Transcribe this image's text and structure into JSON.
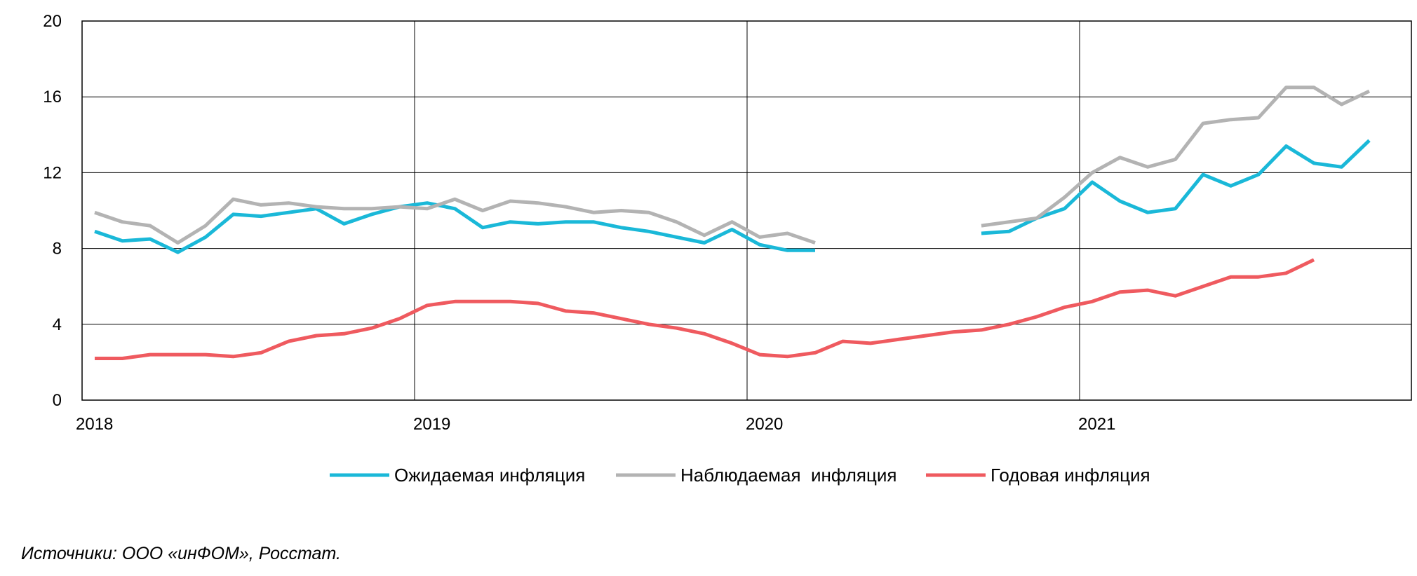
{
  "chart_data": {
    "type": "line",
    "x_unit": "month",
    "x_start": "2018-01",
    "xtick_labels": [
      "2018",
      "2019",
      "2020",
      "2021"
    ],
    "ylim": [
      0,
      20
    ],
    "yticks": [
      0,
      4,
      8,
      12,
      16,
      20
    ],
    "grid": true,
    "legend_position": "bottom",
    "series": [
      {
        "name": "Ожидаемая инфляция",
        "color": "#1ab8d8",
        "values": [
          8.9,
          8.4,
          8.5,
          7.8,
          8.6,
          9.8,
          9.7,
          9.9,
          10.1,
          9.3,
          9.8,
          10.2,
          10.4,
          10.1,
          9.1,
          9.4,
          9.3,
          9.4,
          9.4,
          9.1,
          8.9,
          8.6,
          8.3,
          9.0,
          8.2,
          7.9,
          7.9,
          null,
          null,
          null,
          null,
          null,
          8.8,
          8.9,
          9.6,
          10.1,
          11.5,
          10.5,
          9.9,
          10.1,
          11.9,
          11.3,
          11.9,
          13.4,
          12.5,
          12.3,
          13.7
        ]
      },
      {
        "name": "Наблюдаемая  инфляция",
        "color": "#b3b3b3",
        "values": [
          9.9,
          9.4,
          9.2,
          8.3,
          9.2,
          10.6,
          10.3,
          10.4,
          10.2,
          10.1,
          10.1,
          10.2,
          10.1,
          10.6,
          10.0,
          10.5,
          10.4,
          10.2,
          9.9,
          10.0,
          9.9,
          9.4,
          8.7,
          9.4,
          8.6,
          8.8,
          8.3,
          null,
          null,
          null,
          null,
          null,
          9.2,
          9.4,
          9.6,
          10.7,
          12.0,
          12.8,
          12.3,
          12.7,
          14.6,
          14.8,
          14.9,
          16.5,
          16.5,
          15.6,
          16.3
        ]
      },
      {
        "name": "Годовая инфляция",
        "color": "#ef5a5f",
        "values": [
          2.2,
          2.2,
          2.4,
          2.4,
          2.4,
          2.3,
          2.5,
          3.1,
          3.4,
          3.5,
          3.8,
          4.3,
          5.0,
          5.2,
          5.2,
          5.2,
          5.1,
          4.7,
          4.6,
          4.3,
          4.0,
          3.8,
          3.5,
          3.0,
          2.4,
          2.3,
          2.5,
          3.1,
          3.0,
          3.2,
          3.4,
          3.6,
          3.7,
          4.0,
          4.4,
          4.9,
          5.2,
          5.7,
          5.8,
          5.5,
          6.0,
          6.5,
          6.5,
          6.7,
          7.4
        ]
      }
    ]
  },
  "source_note": "Источники: ООО «инФОМ», Росстат."
}
